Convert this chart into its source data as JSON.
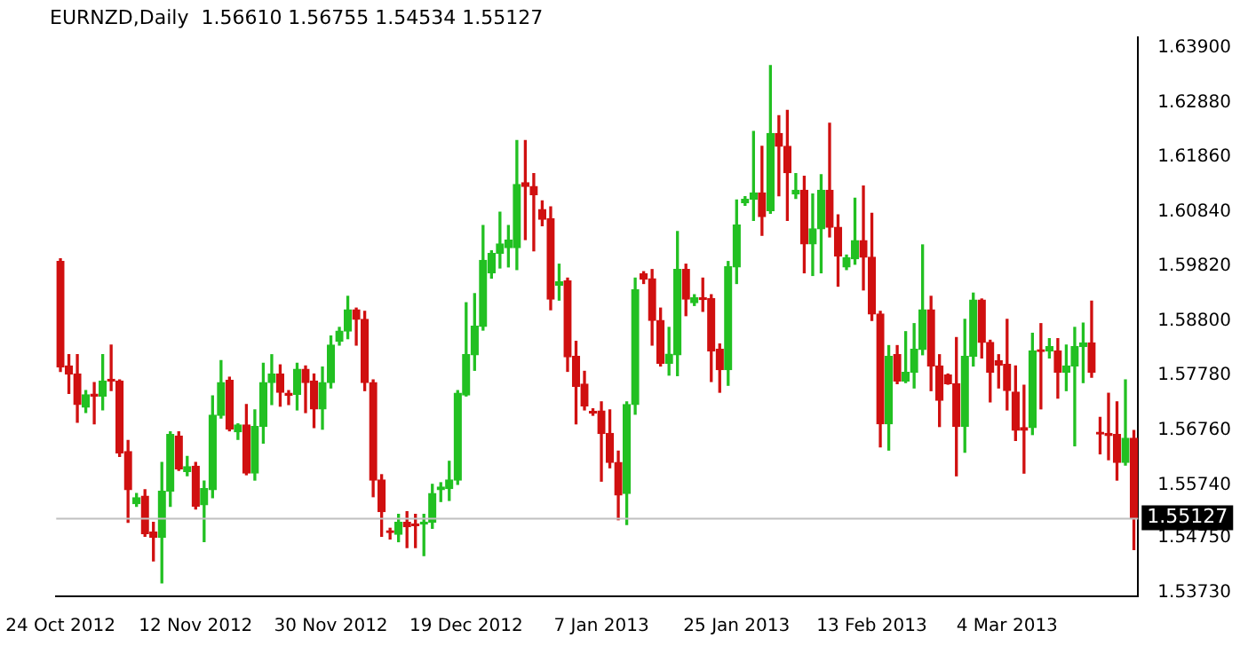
{
  "chart_data": {
    "type": "candlestick",
    "title": "EURNZD,Daily  1.56610 1.56755 1.54534 1.55127",
    "categories": [
      "24 Oct 2012",
      null,
      null,
      null,
      null,
      null,
      null,
      null,
      null,
      null,
      null,
      null,
      null,
      null,
      null,
      null,
      "12 Nov 2012",
      null,
      null,
      null,
      null,
      null,
      null,
      null,
      null,
      null,
      null,
      null,
      null,
      null,
      null,
      null,
      "30 Nov 2012",
      null,
      null,
      null,
      null,
      null,
      null,
      null,
      null,
      null,
      null,
      null,
      null,
      null,
      null,
      null,
      "19 Dec 2012",
      null,
      null,
      null,
      null,
      null,
      null,
      null,
      null,
      null,
      null,
      null,
      null,
      null,
      null,
      null,
      "7 Jan 2013",
      null,
      null,
      null,
      null,
      null,
      null,
      null,
      null,
      null,
      null,
      null,
      null,
      null,
      null,
      null,
      "25 Jan 2013",
      null,
      null,
      null,
      null,
      null,
      null,
      null,
      null,
      null,
      null,
      null,
      null,
      null,
      null,
      null,
      "13 Feb 2013",
      null,
      null,
      null,
      null,
      null,
      null,
      null,
      null,
      null,
      null,
      null,
      null,
      null,
      null,
      null,
      "4 Mar 2013",
      null,
      null,
      null,
      null,
      null,
      null,
      null,
      null,
      null,
      null,
      null,
      null,
      null,
      null,
      null
    ],
    "ohlc": [
      [
        1.5991,
        1.5996,
        1.5786,
        1.5794
      ],
      [
        1.5796,
        1.5817,
        1.5745,
        1.5781
      ],
      [
        1.5781,
        1.5817,
        1.5691,
        1.5724
      ],
      [
        1.5719,
        1.575,
        1.5709,
        1.5742
      ],
      [
        1.5742,
        1.5765,
        1.5688,
        1.574
      ],
      [
        1.574,
        1.5817,
        1.5714,
        1.5768
      ],
      [
        1.5769,
        1.5835,
        1.575,
        1.5768
      ],
      [
        1.5768,
        1.577,
        1.5627,
        1.5634
      ],
      [
        1.5636,
        1.5657,
        1.5504,
        1.5565
      ],
      [
        1.5539,
        1.5558,
        1.5534,
        1.555
      ],
      [
        1.5553,
        1.5565,
        1.5478,
        1.5483
      ],
      [
        1.5486,
        1.5504,
        1.5432,
        1.5476
      ],
      [
        1.5476,
        1.5616,
        1.5391,
        1.5562
      ],
      [
        1.5562,
        1.5673,
        1.5534,
        1.5668
      ],
      [
        1.5665,
        1.5673,
        1.5601,
        1.5604
      ],
      [
        1.5599,
        1.5627,
        1.5591,
        1.5608
      ],
      [
        1.5609,
        1.5616,
        1.5529,
        1.5534
      ],
      [
        1.5537,
        1.5581,
        1.5468,
        1.5567
      ],
      [
        1.5565,
        1.574,
        1.555,
        1.5704
      ],
      [
        1.5704,
        1.5806,
        1.5699,
        1.5765
      ],
      [
        1.5769,
        1.5775,
        1.5675,
        1.5678
      ],
      [
        1.5673,
        1.5688,
        1.5659,
        1.5686
      ],
      [
        1.5686,
        1.5724,
        1.5593,
        1.5596
      ],
      [
        1.5596,
        1.5714,
        1.5583,
        1.5683
      ],
      [
        1.5683,
        1.5801,
        1.5652,
        1.5765
      ],
      [
        1.5765,
        1.5817,
        1.5724,
        1.5781
      ],
      [
        1.5781,
        1.5798,
        1.5721,
        1.5747
      ],
      [
        1.5745,
        1.575,
        1.5724,
        1.5741
      ],
      [
        1.5743,
        1.5801,
        1.5714,
        1.579
      ],
      [
        1.579,
        1.5796,
        1.5709,
        1.5765
      ],
      [
        1.5768,
        1.5781,
        1.5681,
        1.5716
      ],
      [
        1.5716,
        1.5794,
        1.5678,
        1.5765
      ],
      [
        1.5765,
        1.5852,
        1.5755,
        1.5835
      ],
      [
        1.5842,
        1.5868,
        1.5835,
        1.5861
      ],
      [
        1.5861,
        1.5926,
        1.5847,
        1.5901
      ],
      [
        1.5901,
        1.5904,
        1.5835,
        1.5883
      ],
      [
        1.5883,
        1.5898,
        1.575,
        1.5765
      ],
      [
        1.5765,
        1.577,
        1.5552,
        1.5583
      ],
      [
        1.5583,
        1.5593,
        1.5478,
        1.5524
      ],
      [
        1.5486,
        1.5493,
        1.5473,
        1.5485
      ],
      [
        1.5482,
        1.5519,
        1.5468,
        1.5504
      ],
      [
        1.5504,
        1.5524,
        1.5457,
        1.5496
      ],
      [
        1.5501,
        1.5519,
        1.5457,
        1.5498
      ],
      [
        1.5501,
        1.5519,
        1.5442,
        1.5503
      ],
      [
        1.5504,
        1.5575,
        1.5493,
        1.5558
      ],
      [
        1.5565,
        1.5578,
        1.5543,
        1.557
      ],
      [
        1.5567,
        1.5618,
        1.5545,
        1.5583
      ],
      [
        1.5583,
        1.575,
        1.5575,
        1.5745
      ],
      [
        1.5742,
        1.5914,
        1.574,
        1.5817
      ],
      [
        1.5817,
        1.5931,
        1.5788,
        1.587
      ],
      [
        1.587,
        1.6058,
        1.5863,
        1.5993
      ],
      [
        1.597,
        1.6011,
        1.596,
        1.6006
      ],
      [
        1.6006,
        1.6083,
        1.5979,
        1.6024
      ],
      [
        1.6017,
        1.6058,
        1.5981,
        1.6031
      ],
      [
        1.6017,
        1.6217,
        1.5976,
        1.6135
      ],
      [
        1.6138,
        1.6217,
        1.6032,
        1.6131
      ],
      [
        1.6131,
        1.6155,
        1.6011,
        1.6116
      ],
      [
        1.6088,
        1.6104,
        1.6058,
        1.607
      ],
      [
        1.6071,
        1.6093,
        1.5901,
        1.5921
      ],
      [
        1.5947,
        1.5986,
        1.5919,
        1.5953
      ],
      [
        1.5955,
        1.596,
        1.5786,
        1.5813
      ],
      [
        1.5814,
        1.5842,
        1.5688,
        1.5758
      ],
      [
        1.5762,
        1.5786,
        1.5714,
        1.5721
      ],
      [
        1.571,
        1.5716,
        1.5704,
        1.5708
      ],
      [
        1.5712,
        1.5729,
        1.5581,
        1.567
      ],
      [
        1.567,
        1.5714,
        1.5606,
        1.5616
      ],
      [
        1.5616,
        1.5637,
        1.5509,
        1.5555
      ],
      [
        1.5558,
        1.5729,
        1.55,
        1.5724
      ],
      [
        1.5724,
        1.596,
        1.5706,
        1.5938
      ],
      [
        1.5968,
        1.5972,
        1.595,
        1.5958
      ],
      [
        1.5959,
        1.5976,
        1.5835,
        1.5881
      ],
      [
        1.5881,
        1.5904,
        1.5796,
        1.5801
      ],
      [
        1.5801,
        1.5868,
        1.5779,
        1.5818
      ],
      [
        1.5817,
        1.6047,
        1.5778,
        1.5976
      ],
      [
        1.5976,
        1.5986,
        1.589,
        1.5921
      ],
      [
        1.5914,
        1.5929,
        1.5909,
        1.5923
      ],
      [
        1.5921,
        1.596,
        1.5898,
        1.592
      ],
      [
        1.5922,
        1.5929,
        1.5767,
        1.5824
      ],
      [
        1.5827,
        1.5837,
        1.5747,
        1.5789
      ],
      [
        1.5789,
        1.5991,
        1.576,
        1.5981
      ],
      [
        1.5981,
        1.6106,
        1.595,
        1.6059
      ],
      [
        1.6101,
        1.6112,
        1.6096,
        1.6107
      ],
      [
        1.6107,
        1.6234,
        1.6068,
        1.6119
      ],
      [
        1.6119,
        1.6206,
        1.604,
        1.6075
      ],
      [
        1.6086,
        1.6357,
        1.6081,
        1.623
      ],
      [
        1.623,
        1.6263,
        1.6114,
        1.6206
      ],
      [
        1.6206,
        1.6273,
        1.6068,
        1.6157
      ],
      [
        1.6117,
        1.6155,
        1.6109,
        1.6124
      ],
      [
        1.6124,
        1.615,
        1.597,
        1.6024
      ],
      [
        1.6024,
        1.6117,
        1.5965,
        1.6052
      ],
      [
        1.6052,
        1.6153,
        1.597,
        1.6124
      ],
      [
        1.6124,
        1.6249,
        1.6037,
        1.6055
      ],
      [
        1.6055,
        1.6078,
        1.5945,
        1.6001
      ],
      [
        1.5981,
        1.6003,
        1.5976,
        1.5998
      ],
      [
        1.5996,
        1.6109,
        1.5986,
        1.603
      ],
      [
        1.603,
        1.6132,
        1.5938,
        1.5999
      ],
      [
        1.5999,
        1.6081,
        1.5881,
        1.5893
      ],
      [
        1.5893,
        1.5898,
        1.5645,
        1.5688
      ],
      [
        1.5688,
        1.5834,
        1.5639,
        1.5814
      ],
      [
        1.5817,
        1.5834,
        1.5763,
        1.5768
      ],
      [
        1.5768,
        1.586,
        1.5765,
        1.5784
      ],
      [
        1.5784,
        1.5875,
        1.5755,
        1.5827
      ],
      [
        1.5827,
        1.6022,
        1.5817,
        1.5901
      ],
      [
        1.5901,
        1.5926,
        1.575,
        1.5796
      ],
      [
        1.5796,
        1.5817,
        1.5683,
        1.5732
      ],
      [
        1.5779,
        1.5781,
        1.5762,
        1.5763
      ],
      [
        1.5763,
        1.5849,
        1.5591,
        1.5683
      ],
      [
        1.5683,
        1.5883,
        1.5635,
        1.5814
      ],
      [
        1.5814,
        1.5932,
        1.5796,
        1.5919
      ],
      [
        1.5919,
        1.5921,
        1.5811,
        1.584
      ],
      [
        1.584,
        1.5844,
        1.5729,
        1.5784
      ],
      [
        1.5806,
        1.5817,
        1.5755,
        1.5798
      ],
      [
        1.5799,
        1.5883,
        1.5714,
        1.575
      ],
      [
        1.5747,
        1.5796,
        1.5657,
        1.5676
      ],
      [
        1.5681,
        1.576,
        1.5596,
        1.5676
      ],
      [
        1.5681,
        1.5857,
        1.5668,
        1.5824
      ],
      [
        1.5824,
        1.5875,
        1.5716,
        1.5823
      ],
      [
        1.5824,
        1.5847,
        1.5811,
        1.5832
      ],
      [
        1.5824,
        1.5847,
        1.5736,
        1.5784
      ],
      [
        1.5784,
        1.5835,
        1.575,
        1.5796
      ],
      [
        1.5796,
        1.5868,
        1.5647,
        1.5832
      ],
      [
        1.5832,
        1.5876,
        1.5765,
        1.5839
      ],
      [
        1.5839,
        1.5917,
        1.5775,
        1.5784
      ],
      [
        1.567,
        1.57,
        1.5632,
        1.5669
      ],
      [
        1.567,
        1.5745,
        1.5621,
        1.5666
      ],
      [
        1.5668,
        1.5729,
        1.5583,
        1.5616
      ],
      [
        1.5616,
        1.577,
        1.5611,
        1.5661
      ],
      [
        1.5661,
        1.56755,
        1.54534,
        1.55127
      ]
    ],
    "colors": [
      "#d01010",
      "#d01010",
      "#d01010",
      "#22c022",
      "#d01010",
      "#22c022",
      "#d01010",
      "#d01010",
      "#d01010",
      "#22c022",
      "#d01010",
      "#d01010",
      "#22c022",
      "#22c022",
      "#d01010",
      "#22c022",
      "#d01010",
      "#22c022",
      "#22c022",
      "#22c022",
      "#d01010",
      "#22c022",
      "#d01010",
      "#22c022",
      "#22c022",
      "#22c022",
      "#d01010",
      "#d01010",
      "#22c022",
      "#d01010",
      "#d01010",
      "#22c022",
      "#22c022",
      "#22c022",
      "#22c022",
      "#d01010",
      "#d01010",
      "#d01010",
      "#d01010",
      "#d01010",
      "#22c022",
      "#d01010",
      "#d01010",
      "#22c022",
      "#22c022",
      "#22c022",
      "#22c022",
      "#22c022",
      "#22c022",
      "#22c022",
      "#22c022",
      "#22c022",
      "#22c022",
      "#22c022",
      "#22c022",
      "#d01010",
      "#d01010",
      "#d01010",
      "#d01010",
      "#22c022",
      "#d01010",
      "#d01010",
      "#d01010",
      "#d01010",
      "#d01010",
      "#d01010",
      "#d01010",
      "#22c022",
      "#22c022",
      "#d01010",
      "#d01010",
      "#d01010",
      "#22c022",
      "#22c022",
      "#d01010",
      "#22c022",
      "#d01010",
      "#d01010",
      "#d01010",
      "#22c022",
      "#22c022",
      "#22c022",
      "#22c022",
      "#d01010",
      "#22c022",
      "#d01010",
      "#d01010",
      "#22c022",
      "#d01010",
      "#22c022",
      "#22c022",
      "#d01010",
      "#d01010",
      "#22c022",
      "#22c022",
      "#d01010",
      "#d01010",
      "#d01010",
      "#22c022",
      "#d01010",
      "#22c022",
      "#22c022",
      "#22c022",
      "#d01010",
      "#d01010",
      "#d01010",
      "#d01010",
      "#22c022",
      "#22c022",
      "#d01010",
      "#d01010",
      "#d01010",
      "#d01010",
      "#d01010",
      "#d01010",
      "#22c022",
      "#d01010",
      "#22c022",
      "#d01010",
      "#22c022",
      "#22c022",
      "#22c022",
      "#d01010",
      "#d01010",
      "#d01010",
      "#d01010",
      "#22c022",
      "#d01010"
    ],
    "ylim": [
      1.5366,
      1.6409
    ],
    "yticks": [
      {
        "value": 1.639,
        "label": "1.63900"
      },
      {
        "value": 1.6288,
        "label": "1.62880"
      },
      {
        "value": 1.6186,
        "label": "1.61860"
      },
      {
        "value": 1.6084,
        "label": "1.60840"
      },
      {
        "value": 1.5982,
        "label": "1.59820"
      },
      {
        "value": 1.588,
        "label": "1.58800"
      },
      {
        "value": 1.5778,
        "label": "1.57780"
      },
      {
        "value": 1.5676,
        "label": "1.56760"
      },
      {
        "value": 1.5574,
        "label": "1.55740"
      },
      {
        "value": 1.5475,
        "label": "1.54750"
      },
      {
        "value": 1.5373,
        "label": "1.53730"
      }
    ],
    "ref_lines": [
      {
        "axis": "y",
        "value": 1.55127,
        "label": "1.55127",
        "color": "#c0c0c0"
      }
    ]
  }
}
